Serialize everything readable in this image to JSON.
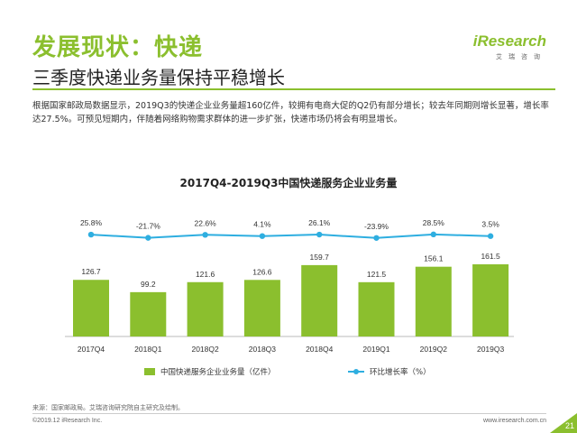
{
  "header": {
    "title": "发展现状：快递",
    "subtitle": "三季度快递业务量保持平稳增长",
    "description": "根据国家邮政局数据显示，2019Q3的快递企业业务量超160亿件，较拥有电商大促的Q2仍有部分增长；较去年同期则增长显著，增长率达27.5%。可预见短期内，伴随着网络购物需求群体的进一步扩张，快递市场仍将会有明显增长。"
  },
  "logo": {
    "main": "iResearch",
    "sub": "艾瑞咨询"
  },
  "colors": {
    "accent": "#8bbf2e",
    "bar": "#8bbf2e",
    "line": "#2eaee0"
  },
  "chart_data": {
    "type": "bar",
    "title": "2017Q4-2019Q3中国快递服务企业业务量",
    "categories": [
      "2017Q4",
      "2018Q1",
      "2018Q2",
      "2018Q3",
      "2018Q4",
      "2019Q1",
      "2019Q2",
      "2019Q3"
    ],
    "series": [
      {
        "name": "中国快递服务企业业务量（亿件）",
        "type": "bar",
        "values": [
          126.7,
          99.2,
          121.6,
          126.6,
          159.7,
          121.5,
          156.1,
          161.5
        ],
        "labels": [
          "126.7",
          "99.2",
          "121.6",
          "126.6",
          "159.7",
          "121.5",
          "156.1",
          "161.5"
        ]
      },
      {
        "name": "环比增长率（%）",
        "type": "line",
        "values": [
          25.8,
          -21.7,
          22.6,
          4.1,
          26.1,
          -23.9,
          28.5,
          3.5
        ],
        "labels": [
          "25.8%",
          "-21.7%",
          "22.6%",
          "4.1%",
          "26.1%",
          "-23.9%",
          "28.5%",
          "3.5%"
        ]
      }
    ],
    "legend_position": "bottom",
    "grid": false
  },
  "footer": {
    "source": "来源：国家邮政局。艾瑞咨询研究院自主研究及绘制。",
    "copyright": "©2019.12 iResearch Inc.",
    "site": "www.iresearch.com.cn",
    "page": "21"
  }
}
